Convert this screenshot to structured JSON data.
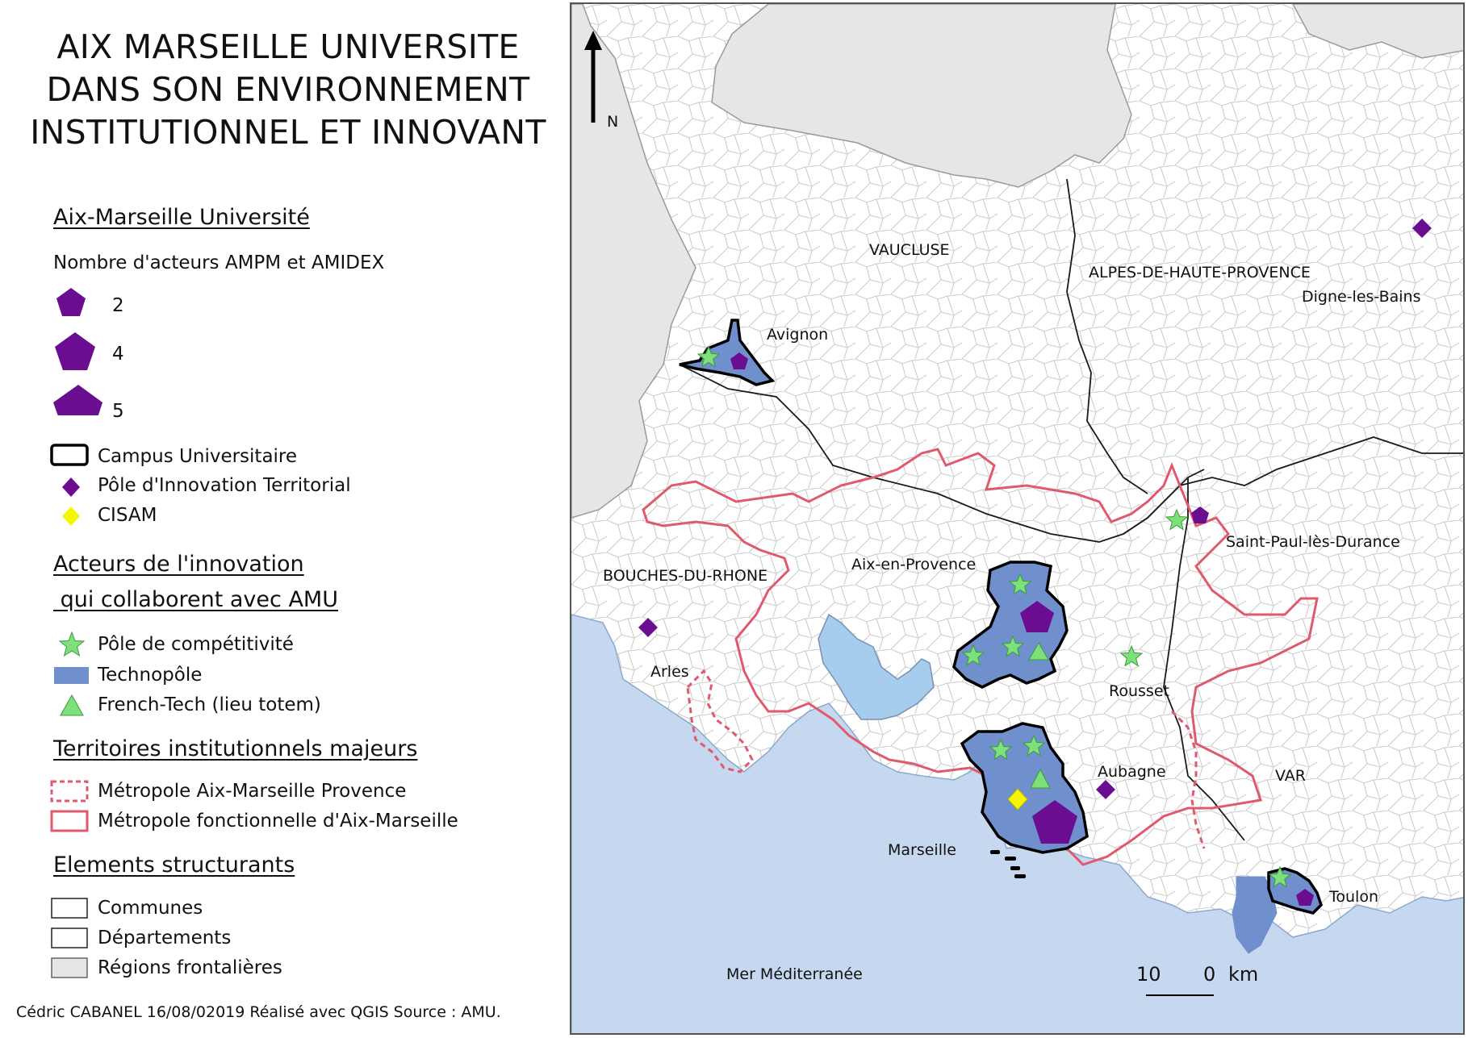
{
  "title": "AIX MARSEILLE UNIVERSITE DANS SON ENVIRONNEMENT INSTITUTIONNEL ET INNOVANT",
  "legend": {
    "amu_heading": "Aix-Marseille Université",
    "actors_count_label": "Nombre d'acteurs AMPM et AMIDEX",
    "sizes": [
      "2",
      "4",
      "5"
    ],
    "campus": "Campus Universitaire",
    "pole_innovation": "Pôle d'Innovation Territorial",
    "cisam": "CISAM",
    "innovation_heading_1": "Acteurs de l'innovation",
    "innovation_heading_2": " qui collaborent avec AMU",
    "pole_competitivite": "Pôle de compétitivité",
    "technopole": "Technopôle",
    "french_tech": "French-Tech (lieu totem)",
    "territoires_heading": "Territoires institutionnels majeurs",
    "metropole_amp": "Métropole Aix-Marseille Provence",
    "metropole_fonctionnelle": "Métropole fonctionnelle d'Aix-Marseille",
    "elements_heading": "Elements structurants",
    "communes": "Communes",
    "departements": "Départements",
    "regions": "Régions frontalières"
  },
  "credit": "Cédric CABANEL  16/08/02019 Réalisé avec QGIS  Source : AMU.",
  "map": {
    "north": "N",
    "scale_left": "10",
    "scale_right": "0",
    "scale_unit": "km",
    "departments": {
      "vaucluse": "VAUCLUSE",
      "ahp": "ALPES-DE-HAUTE-PROVENCE",
      "bdr": "BOUCHES-DU-RHONE",
      "var": "VAR"
    },
    "cities": {
      "avignon": "Avignon",
      "digne": "Digne-les-Bains",
      "aix": "Aix-en-Provence",
      "saint_paul": "Saint-Paul-lès-Durance",
      "arles": "Arles",
      "rousset": "Rousset",
      "aubagne": "Aubagne",
      "marseille": "Marseille",
      "toulon": "Toulon"
    },
    "sea": "Mer Méditerranée"
  },
  "colors": {
    "amu_purple": "#6a0d91",
    "star_green": "#7ee07a",
    "technopole_blue": "#6f8fcd",
    "cisam_yellow": "#f5f500",
    "metropole_red": "#e05a6e",
    "sea_blue": "#c6d8ef",
    "lagoon_blue": "#a7cdee",
    "region_grey": "#e6e6e6"
  }
}
